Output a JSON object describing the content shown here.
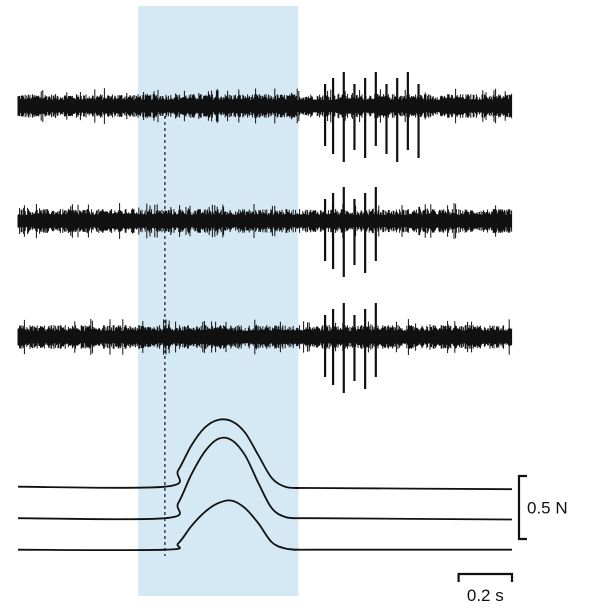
{
  "chart_data": {
    "type": "line",
    "title": "",
    "xlabel": "",
    "ylabel": "",
    "colors": {
      "trace": "#111111",
      "highlight": "#d4e9f3"
    },
    "highlight_window_s": [
      0.35,
      0.95
    ],
    "stimulus_onset_s": 0.45,
    "neural_recordings": [
      {
        "name": "",
        "baseline_end_s": 1.75,
        "burst_spike_times_s": [
          1.05,
          1.08,
          1.12,
          1.16,
          1.2,
          1.24,
          1.28,
          1.32,
          1.36,
          1.4
        ]
      },
      {
        "name": "",
        "baseline_end_s": 1.75,
        "burst_spike_times_s": [
          1.05,
          1.08,
          1.12,
          1.16,
          1.2,
          1.24
        ]
      },
      {
        "name": "",
        "baseline_end_s": 1.75,
        "burst_spike_times_s": [
          1.05,
          1.08,
          1.12,
          1.16,
          1.2,
          1.24
        ]
      }
    ],
    "force_traces": {
      "x_s": [
        -0.1,
        0.45,
        0.5,
        0.55,
        0.6,
        0.65,
        0.7,
        0.75,
        0.8,
        0.85,
        0.9,
        0.95,
        1.0,
        1.75
      ],
      "series": [
        {
          "name": "",
          "values_N": [
            0.55,
            0.55,
            0.68,
            0.88,
            1.02,
            1.08,
            1.07,
            0.98,
            0.8,
            0.62,
            0.55,
            0.54,
            0.54,
            0.53
          ]
        },
        {
          "name": "",
          "values_N": [
            0.3,
            0.3,
            0.42,
            0.65,
            0.83,
            0.93,
            0.92,
            0.8,
            0.58,
            0.38,
            0.31,
            0.3,
            0.3,
            0.29
          ]
        },
        {
          "name": "",
          "values_N": [
            0.05,
            0.05,
            0.1,
            0.24,
            0.35,
            0.42,
            0.44,
            0.38,
            0.26,
            0.11,
            0.06,
            0.05,
            0.05,
            0.05
          ]
        }
      ]
    },
    "scale_bars": {
      "force_label": "0.5 N",
      "force_N": 0.5,
      "time_label": "0.2 s",
      "time_s": 0.2
    }
  }
}
